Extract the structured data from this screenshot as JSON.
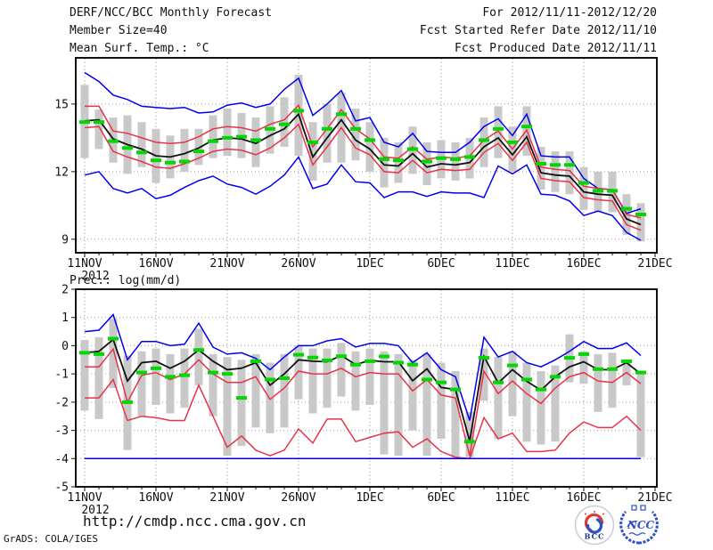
{
  "header": {
    "title": "DERF/NCC/BCC Monthly Forecast",
    "member_size": "Member Size=40",
    "var_label": "Mean Surf. Temp.: °C",
    "for_range": "For 2012/11/11-2012/12/20",
    "refer_date": "Fcst Started Refer Date 2012/11/10",
    "produced_date": "Fcst Produced Date 2012/11/11"
  },
  "footer": {
    "url": "http://cmdp.ncc.cma.gov.cn",
    "credit": "GrADS: COLA/IGES"
  },
  "logos": {
    "bcc_label": "BCC",
    "ncc_label": "NCC"
  },
  "colors": {
    "max_min_line": "#0000ee",
    "spread_line": "#e73249",
    "mean_line": "#111111",
    "obs_dash": "#00d800",
    "member_bar": "#c9c9c9",
    "grid": "#9a9a9a",
    "border": "#111111"
  },
  "chart_data": [
    {
      "id": "temp",
      "type": "line",
      "title": "Mean Surf. Temp.: °C",
      "x_axis": {
        "start": "11NOV 2012",
        "end": "21DEC",
        "days": 40,
        "tick_step_days": 5
      },
      "x_tick_labels": [
        "11NOV",
        "16NOV",
        "21NOV",
        "26NOV",
        "1DEC",
        "6DEC",
        "11DEC",
        "16DEC",
        "21DEC"
      ],
      "year": "2012",
      "ylim": [
        8.4,
        17.05
      ],
      "yticks": [
        15,
        12,
        9
      ],
      "grid": true,
      "legend": "none",
      "series": [
        {
          "name": "max (blue)",
          "color": "#0000ee",
          "width": 1.5,
          "values": [
            16.4,
            16.0,
            15.4,
            15.2,
            14.9,
            14.85,
            14.8,
            14.85,
            14.6,
            14.65,
            14.95,
            15.05,
            14.85,
            15.0,
            15.65,
            16.15,
            14.5,
            15.0,
            15.6,
            14.25,
            14.4,
            13.3,
            13.1,
            13.7,
            12.9,
            12.85,
            12.85,
            13.3,
            14.0,
            14.35,
            13.6,
            14.55,
            12.7,
            12.65,
            12.65,
            11.7,
            11.25,
            11.2,
            10.15,
            10.35
          ]
        },
        {
          "name": "upper spread (red)",
          "color": "#e73249",
          "width": 1.5,
          "values": [
            14.9,
            14.9,
            13.8,
            13.7,
            13.5,
            13.3,
            13.25,
            13.3,
            13.55,
            13.9,
            14.0,
            13.95,
            13.8,
            14.1,
            14.3,
            14.95,
            13.1,
            13.9,
            14.75,
            13.9,
            13.45,
            12.65,
            12.6,
            13.1,
            12.55,
            12.65,
            12.6,
            12.7,
            13.4,
            13.8,
            13.0,
            13.85,
            12.2,
            12.1,
            12.05,
            11.35,
            11.25,
            11.2,
            10.1,
            9.95
          ]
        },
        {
          "name": "ensemble mean (black)",
          "color": "#111111",
          "width": 1.8,
          "values": [
            14.25,
            14.3,
            13.45,
            13.2,
            13.0,
            12.7,
            12.65,
            12.8,
            13.05,
            13.4,
            13.5,
            13.45,
            13.25,
            13.6,
            13.9,
            14.55,
            12.65,
            13.5,
            14.3,
            13.4,
            13.0,
            12.3,
            12.25,
            12.8,
            12.2,
            12.35,
            12.3,
            12.4,
            13.1,
            13.5,
            12.75,
            13.55,
            11.95,
            11.85,
            11.8,
            11.1,
            11.0,
            10.95,
            9.9,
            9.65
          ]
        },
        {
          "name": "lower spread (red)",
          "color": "#e73249",
          "width": 1.5,
          "values": [
            13.95,
            14.0,
            12.9,
            12.65,
            12.45,
            12.2,
            12.15,
            12.35,
            12.6,
            12.9,
            13.0,
            12.95,
            12.75,
            13.05,
            13.5,
            14.1,
            12.3,
            13.1,
            13.95,
            13.05,
            12.75,
            12.0,
            11.95,
            12.5,
            11.95,
            12.1,
            12.05,
            12.1,
            12.85,
            13.25,
            12.5,
            13.3,
            11.7,
            11.6,
            11.55,
            10.85,
            10.75,
            10.7,
            9.65,
            9.4
          ]
        },
        {
          "name": "min (blue)",
          "color": "#0000ee",
          "width": 1.5,
          "values": [
            11.85,
            12.0,
            11.25,
            11.05,
            11.25,
            10.8,
            10.95,
            11.3,
            11.6,
            11.8,
            11.45,
            11.3,
            11.0,
            11.35,
            11.85,
            12.65,
            11.25,
            11.45,
            12.3,
            11.55,
            11.5,
            10.85,
            11.1,
            11.1,
            10.9,
            11.1,
            11.05,
            11.05,
            10.85,
            12.25,
            11.9,
            12.3,
            11.0,
            10.95,
            10.7,
            10.05,
            10.25,
            10.05,
            9.3,
            8.95
          ]
        }
      ],
      "markers": {
        "name": "green dash markers",
        "color": "#00d800",
        "values": [
          14.2,
          14.2,
          13.35,
          13.05,
          12.85,
          12.5,
          12.4,
          12.45,
          12.9,
          13.35,
          13.5,
          13.55,
          13.4,
          13.9,
          14.1,
          14.7,
          13.3,
          13.9,
          14.55,
          13.9,
          13.4,
          12.55,
          12.5,
          13.0,
          12.45,
          12.6,
          12.55,
          12.65,
          13.4,
          13.9,
          13.3,
          14.0,
          12.35,
          12.3,
          12.3,
          11.5,
          11.15,
          11.15,
          10.35,
          10.1
        ]
      },
      "bars": {
        "name": "member spread bars",
        "color": "#c9c9c9",
        "lo": [
          12.6,
          13.0,
          12.4,
          11.9,
          12.2,
          11.5,
          11.7,
          12.0,
          12.3,
          12.6,
          12.7,
          12.6,
          12.2,
          12.8,
          13.1,
          12.7,
          11.6,
          12.4,
          12.4,
          12.5,
          12.0,
          11.3,
          11.5,
          11.9,
          11.4,
          11.7,
          11.6,
          11.7,
          12.2,
          12.6,
          12.0,
          12.7,
          11.2,
          11.1,
          11.0,
          10.3,
          10.2,
          10.2,
          9.2,
          8.9
        ],
        "hi": [
          15.85,
          14.75,
          14.4,
          14.5,
          14.2,
          13.9,
          13.6,
          13.9,
          13.9,
          14.5,
          14.8,
          14.6,
          14.4,
          14.9,
          15.3,
          16.3,
          14.2,
          15.0,
          15.5,
          14.8,
          14.2,
          13.5,
          13.3,
          14.0,
          13.3,
          13.4,
          13.3,
          13.5,
          14.4,
          14.9,
          14.0,
          14.9,
          13.1,
          12.9,
          12.9,
          12.2,
          12.0,
          12.0,
          11.0,
          10.6
        ]
      }
    },
    {
      "id": "precip",
      "type": "line",
      "title": "Prec.: log(mm/d)",
      "x_axis": {
        "start": "11NOV 2012",
        "end": "21DEC",
        "days": 40,
        "tick_step_days": 5
      },
      "x_tick_labels": [
        "11NOV",
        "16NOV",
        "21NOV",
        "26NOV",
        "1DEC",
        "6DEC",
        "11DEC",
        "16DEC",
        "21DEC"
      ],
      "year": "2012",
      "ylim": [
        -5,
        2
      ],
      "yticks": [
        2,
        1,
        0,
        -1,
        -2,
        -3,
        -4,
        -5
      ],
      "grid": true,
      "legend": "none",
      "series": [
        {
          "name": "max (blue)",
          "color": "#0000ee",
          "width": 1.5,
          "values": [
            0.5,
            0.55,
            1.1,
            -0.5,
            0.15,
            0.15,
            0.0,
            0.05,
            0.8,
            -0.05,
            -0.3,
            -0.25,
            -0.45,
            -0.85,
            -0.4,
            0.0,
            0.0,
            0.17,
            0.25,
            -0.05,
            0.08,
            0.08,
            0.0,
            -0.6,
            -0.25,
            -0.85,
            -1.1,
            -2.65,
            0.3,
            -0.4,
            -0.2,
            -0.6,
            -0.75,
            -0.5,
            -0.2,
            0.15,
            -0.1,
            -0.1,
            0.1,
            -0.35
          ]
        },
        {
          "name": "upper spread (red)",
          "color": "#e73249",
          "width": 1.5,
          "values": [
            -0.75,
            -0.75,
            -0.12,
            -2.0,
            -1.05,
            -0.95,
            -1.2,
            -1.0,
            -0.5,
            -1.0,
            -1.3,
            -1.3,
            -1.1,
            -1.9,
            -1.5,
            -0.9,
            -1.0,
            -1.0,
            -0.8,
            -1.1,
            -0.95,
            -1.0,
            -1.0,
            -1.6,
            -1.2,
            -1.75,
            -1.85,
            -3.9,
            -0.9,
            -1.7,
            -1.25,
            -1.7,
            -2.05,
            -1.5,
            -1.1,
            -0.95,
            -1.25,
            -1.3,
            -0.95,
            -1.35
          ]
        },
        {
          "name": "ensemble mean (black)",
          "color": "#111111",
          "width": 1.8,
          "values": [
            -0.25,
            -0.2,
            0.22,
            -1.25,
            -0.6,
            -0.55,
            -0.8,
            -0.55,
            -0.15,
            -0.55,
            -0.85,
            -0.8,
            -0.6,
            -1.4,
            -1.0,
            -0.5,
            -0.55,
            -0.57,
            -0.35,
            -0.67,
            -0.52,
            -0.57,
            -0.57,
            -1.24,
            -0.82,
            -1.48,
            -1.55,
            -3.38,
            -0.38,
            -1.32,
            -0.85,
            -1.26,
            -1.58,
            -1.1,
            -0.75,
            -0.57,
            -0.85,
            -0.85,
            -0.6,
            -1.0
          ]
        },
        {
          "name": "lower spread (red)",
          "color": "#e73249",
          "width": 1.5,
          "values": [
            -1.85,
            -1.85,
            -1.2,
            -2.65,
            -2.5,
            -2.55,
            -2.65,
            -2.65,
            -1.4,
            -2.5,
            -3.6,
            -3.2,
            -3.7,
            -3.9,
            -3.7,
            -2.95,
            -3.45,
            -2.6,
            -2.6,
            -3.4,
            -3.25,
            -3.1,
            -3.05,
            -3.6,
            -3.3,
            -3.75,
            -3.95,
            -4.0,
            -2.55,
            -3.3,
            -3.1,
            -3.75,
            -3.75,
            -3.7,
            -3.1,
            -2.7,
            -2.9,
            -2.9,
            -2.5,
            -3.0
          ]
        },
        {
          "name": "min (blue)",
          "color": "#0000ee",
          "width": 1.5,
          "values": [
            -4.0,
            -4.0,
            -4.0,
            -4.0,
            -4.0,
            -4.0,
            -4.0,
            -4.0,
            -4.0,
            -4.0,
            -4.0,
            -4.0,
            -4.0,
            -4.0,
            -4.0,
            -4.0,
            -4.0,
            -4.0,
            -4.0,
            -4.0,
            -4.0,
            -4.0,
            -4.0,
            -4.0,
            -4.0,
            -4.0,
            -4.0,
            -4.0,
            -4.0,
            -4.0,
            -4.0,
            -4.0,
            -4.0,
            -4.0,
            -4.0,
            -4.0,
            -4.0,
            -4.0,
            -4.0,
            -4.0
          ]
        }
      ],
      "markers": {
        "name": "green dash markers",
        "color": "#00d800",
        "values": [
          -0.25,
          -0.3,
          0.25,
          -2.0,
          -0.95,
          -0.8,
          -1.1,
          -1.05,
          -0.15,
          -0.95,
          -1.0,
          -1.85,
          -0.55,
          -1.2,
          -1.15,
          -0.32,
          -0.42,
          -0.52,
          -0.37,
          -0.67,
          -0.55,
          -0.38,
          -0.6,
          -0.67,
          -1.2,
          -1.3,
          -1.55,
          -3.4,
          -0.43,
          -1.3,
          -0.7,
          -1.2,
          -1.55,
          -1.1,
          -0.43,
          -0.3,
          -0.83,
          -0.83,
          -0.55,
          -0.95
        ]
      },
      "bars": {
        "name": "member spread bars",
        "color": "#c9c9c9",
        "lo": [
          -2.3,
          -2.6,
          -1.5,
          -3.7,
          -2.5,
          -2.1,
          -2.4,
          -2.2,
          -1.4,
          -2.5,
          -3.9,
          -3.55,
          -2.9,
          -3.1,
          -2.9,
          -1.9,
          -2.4,
          -2.2,
          -1.8,
          -2.3,
          -2.1,
          -3.85,
          -3.9,
          -3.0,
          -3.9,
          -3.3,
          -4.0,
          -3.95,
          -1.95,
          -3.3,
          -2.5,
          -3.4,
          -3.5,
          -3.4,
          -1.3,
          -1.35,
          -2.35,
          -2.2,
          -1.4,
          -3.95
        ],
        "hi": [
          0.2,
          0.3,
          0.95,
          -0.35,
          -0.2,
          -0.1,
          -0.3,
          -0.1,
          0.6,
          -0.3,
          -0.4,
          -0.5,
          -0.3,
          -0.6,
          -0.3,
          0.0,
          -0.1,
          -0.1,
          0.1,
          -0.2,
          -0.1,
          -0.2,
          -0.3,
          -0.5,
          -0.3,
          -0.6,
          -0.9,
          -2.35,
          -0.1,
          -0.4,
          -0.2,
          -0.6,
          -0.9,
          -0.7,
          0.4,
          -0.2,
          -0.3,
          -0.25,
          -0.55,
          -0.9
        ]
      }
    }
  ]
}
